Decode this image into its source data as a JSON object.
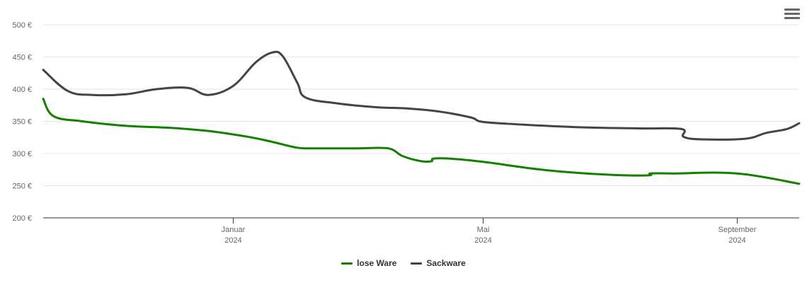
{
  "chart_data": {
    "type": "line",
    "title": "",
    "xlabel": "",
    "ylabel": "",
    "ylim": [
      200,
      500
    ],
    "y_ticks": [
      "200 €",
      "250 €",
      "300 €",
      "350 €",
      "400 €",
      "450 €",
      "500 €"
    ],
    "y_tick_values": [
      200,
      250,
      300,
      350,
      400,
      450,
      500
    ],
    "x_range": [
      "2023-10-01",
      "2024-10-01"
    ],
    "x_ticks": [
      {
        "date": "2024-01-01",
        "month": "Januar",
        "year": "2024"
      },
      {
        "date": "2024-05-01",
        "month": "Mai",
        "year": "2024"
      },
      {
        "date": "2024-09-01",
        "month": "September",
        "year": "2024"
      }
    ],
    "grid": true,
    "legend_position": "bottom-center",
    "series": [
      {
        "name": "lose Ware",
        "color": "#138000",
        "points": [
          [
            "2023-10-01",
            385
          ],
          [
            "2023-10-06",
            358
          ],
          [
            "2023-10-20",
            350
          ],
          [
            "2023-11-10",
            343
          ],
          [
            "2023-12-01",
            340
          ],
          [
            "2023-12-20",
            335
          ],
          [
            "2024-01-08",
            326
          ],
          [
            "2024-01-20",
            318
          ],
          [
            "2024-02-01",
            309
          ],
          [
            "2024-02-10",
            308
          ],
          [
            "2024-03-01",
            308
          ],
          [
            "2024-03-16",
            308
          ],
          [
            "2024-03-23",
            296
          ],
          [
            "2024-04-01",
            288
          ],
          [
            "2024-04-06",
            288
          ],
          [
            "2024-04-07",
            292
          ],
          [
            "2024-04-15",
            292
          ],
          [
            "2024-05-01",
            287
          ],
          [
            "2024-06-01",
            274
          ],
          [
            "2024-07-01",
            267
          ],
          [
            "2024-07-20",
            266
          ],
          [
            "2024-07-21",
            269
          ],
          [
            "2024-08-01",
            269
          ],
          [
            "2024-09-01",
            269
          ],
          [
            "2024-10-01",
            253
          ]
        ]
      },
      {
        "name": "Sackware",
        "color": "#434348",
        "points": [
          [
            "2023-10-01",
            430
          ],
          [
            "2023-10-13",
            397
          ],
          [
            "2023-10-25",
            391
          ],
          [
            "2023-11-10",
            392
          ],
          [
            "2023-11-25",
            400
          ],
          [
            "2023-12-10",
            402
          ],
          [
            "2023-12-20",
            391
          ],
          [
            "2024-01-01",
            405
          ],
          [
            "2024-01-12",
            442
          ],
          [
            "2024-01-20",
            457
          ],
          [
            "2024-01-25",
            451
          ],
          [
            "2024-02-01",
            410
          ],
          [
            "2024-02-05",
            387
          ],
          [
            "2024-02-20",
            378
          ],
          [
            "2024-03-10",
            372
          ],
          [
            "2024-03-25",
            370
          ],
          [
            "2024-04-10",
            365
          ],
          [
            "2024-04-25",
            356
          ],
          [
            "2024-05-01",
            349
          ],
          [
            "2024-05-20",
            345
          ],
          [
            "2024-06-15",
            341
          ],
          [
            "2024-07-15",
            339
          ],
          [
            "2024-08-05",
            338
          ],
          [
            "2024-08-06",
            326
          ],
          [
            "2024-08-15",
            322
          ],
          [
            "2024-09-05",
            323
          ],
          [
            "2024-09-15",
            332
          ],
          [
            "2024-09-25",
            338
          ],
          [
            "2024-10-01",
            347
          ]
        ]
      }
    ]
  },
  "legend": {
    "items": [
      {
        "label": "lose Ware",
        "color": "#138000"
      },
      {
        "label": "Sackware",
        "color": "#434348"
      }
    ]
  },
  "menu": {
    "icon": "hamburger-menu-icon"
  }
}
